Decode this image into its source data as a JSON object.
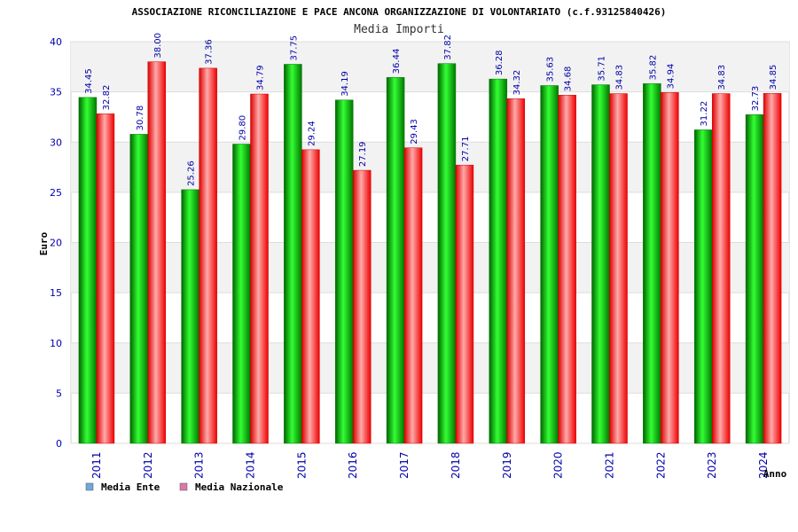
{
  "chart_data": {
    "type": "bar",
    "title": "ASSOCIAZIONE RICONCILIAZIONE E PACE ANCONA ORGANIZZAZIONE DI VOLONTARIATO (c.f.93125840426)",
    "subtitle": "Media Importi",
    "xlabel": "Anno",
    "ylabel": "Euro",
    "ylim": [
      0,
      40
    ],
    "yticks": [
      "0",
      "5",
      "10",
      "15",
      "20",
      "25",
      "30",
      "35",
      "40"
    ],
    "categories": [
      "2011",
      "2012",
      "2013",
      "2014",
      "2015",
      "2016",
      "2017",
      "2018",
      "2019",
      "2020",
      "2021",
      "2022",
      "2023",
      "2024"
    ],
    "series": [
      {
        "name": "Media Ente",
        "values": [
          34.45,
          30.78,
          25.26,
          29.8,
          37.75,
          34.19,
          36.44,
          37.82,
          36.28,
          35.63,
          35.71,
          35.82,
          31.22,
          32.73
        ],
        "labels": [
          "34.45",
          "30.78",
          "25.26",
          "29.80",
          "37.75",
          "34.19",
          "36.44",
          "37.82",
          "36.28",
          "35.63",
          "35.71",
          "35.82",
          "31.22",
          "32.73"
        ],
        "color": "#00aa00",
        "legend_color": "#6fa8dc"
      },
      {
        "name": "Media Nazionale",
        "values": [
          32.82,
          38.0,
          37.36,
          34.79,
          29.24,
          27.19,
          29.43,
          27.71,
          34.32,
          34.68,
          34.83,
          34.94,
          34.83,
          34.85
        ],
        "labels": [
          "32.82",
          "38.00",
          "37.36",
          "34.79",
          "29.24",
          "27.19",
          "29.43",
          "27.71",
          "34.32",
          "34.68",
          "34.83",
          "34.94",
          "34.83",
          "34.85"
        ],
        "color": "#ee0000",
        "legend_color": "#dd77aa"
      }
    ],
    "grid": true,
    "legend_position": "bottom-left"
  }
}
